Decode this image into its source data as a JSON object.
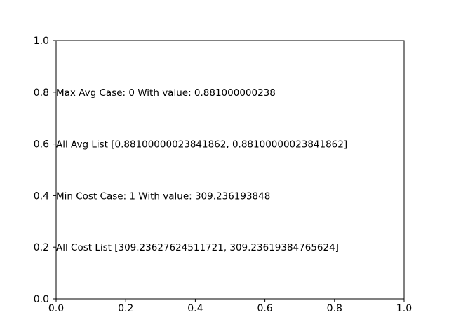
{
  "chart_data": {
    "type": "scatter",
    "title": "",
    "xlabel": "",
    "ylabel": "",
    "xlim": [
      0.0,
      1.0
    ],
    "ylim": [
      0.0,
      1.0
    ],
    "x_ticks": [
      "0.0",
      "0.2",
      "0.4",
      "0.6",
      "0.8",
      "1.0"
    ],
    "y_ticks": [
      "0.0",
      "0.2",
      "0.4",
      "0.6",
      "0.8",
      "1.0"
    ],
    "grid": false,
    "annotations": [
      {
        "x": 0.0,
        "y": 0.8,
        "text": "Max Avg Case: 0 With value: 0.881000000238"
      },
      {
        "x": 0.0,
        "y": 0.6,
        "text": "All Avg List [0.88100000023841862, 0.88100000023841862]"
      },
      {
        "x": 0.0,
        "y": 0.4,
        "text": "Min Cost Case: 1 With value: 309.236193848"
      },
      {
        "x": 0.0,
        "y": 0.2,
        "text": "All Cost List [309.23627624511721, 309.23619384765624]"
      }
    ]
  }
}
